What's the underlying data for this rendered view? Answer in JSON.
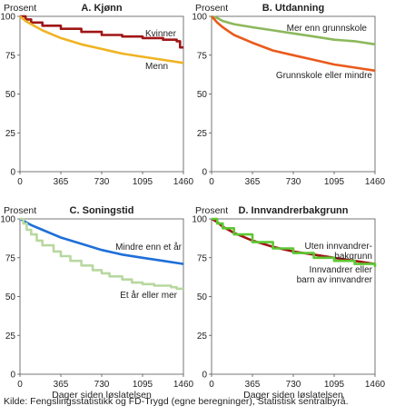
{
  "source_note": "Kilde: Fengslingsstatistikk og FD-Trygd (egne beregninger), Statistisk sentralbyrå.",
  "chart_data": [
    {
      "type": "line",
      "title": "A. Kjønn",
      "ylabel": "Prosent",
      "xlabel": "",
      "xlim": [
        0,
        1460
      ],
      "ylim": [
        0,
        100
      ],
      "xticks": [
        0,
        365,
        730,
        1095,
        1460
      ],
      "yticks": [
        0,
        25,
        50,
        75,
        100
      ],
      "grid": false,
      "series": [
        {
          "name": "Kvinner",
          "color": "#a01515",
          "step": true,
          "x": [
            0,
            50,
            100,
            200,
            365,
            548,
            730,
            913,
            1095,
            1278,
            1400,
            1430,
            1460
          ],
          "y": [
            100,
            98,
            96,
            94,
            92,
            90,
            88,
            87,
            86,
            85,
            84,
            80,
            80
          ]
        },
        {
          "name": "Menn",
          "color": "#f0b322",
          "step": false,
          "x": [
            0,
            50,
            100,
            200,
            365,
            548,
            730,
            913,
            1095,
            1278,
            1460
          ],
          "y": [
            100,
            97,
            95,
            91,
            86,
            82,
            79,
            76,
            74,
            72,
            70
          ]
        }
      ]
    },
    {
      "type": "line",
      "title": "B. Utdanning",
      "ylabel": "Prosent",
      "xlabel": "",
      "xlim": [
        0,
        1460
      ],
      "ylim": [
        0,
        100
      ],
      "xticks": [
        0,
        365,
        730,
        1095,
        1460
      ],
      "yticks": [
        0,
        25,
        50,
        75,
        100
      ],
      "grid": false,
      "series": [
        {
          "name": "Mer enn grunnskole",
          "color": "#8cb85c",
          "step": false,
          "x": [
            0,
            50,
            100,
            200,
            365,
            548,
            730,
            913,
            1095,
            1278,
            1460
          ],
          "y": [
            100,
            99,
            97,
            95,
            93,
            91,
            89,
            87,
            85,
            84,
            82
          ]
        },
        {
          "name": "Grunnskole eller mindre",
          "color": "#ea5a1c",
          "step": false,
          "x": [
            0,
            50,
            100,
            200,
            365,
            548,
            730,
            913,
            1095,
            1278,
            1460
          ],
          "y": [
            100,
            96,
            93,
            88,
            83,
            78,
            75,
            72,
            69,
            67,
            65
          ]
        }
      ]
    },
    {
      "type": "line",
      "title": "C. Soningstid",
      "ylabel": "Prosent",
      "xlabel": "Dager siden løslatelsen",
      "xlim": [
        0,
        1460
      ],
      "ylim": [
        0,
        100
      ],
      "xticks": [
        0,
        365,
        730,
        1095,
        1460
      ],
      "yticks": [
        0,
        25,
        50,
        75,
        100
      ],
      "grid": false,
      "series": [
        {
          "name": "Mindre enn et år",
          "color": "#1e6fd8",
          "step": false,
          "x": [
            0,
            50,
            100,
            200,
            365,
            548,
            730,
            913,
            1095,
            1278,
            1460
          ],
          "y": [
            100,
            98,
            96,
            93,
            88,
            84,
            80,
            77,
            75,
            73,
            71
          ]
        },
        {
          "name": "Et år eller mer",
          "color": "#b8d8a0",
          "step": true,
          "x": [
            0,
            30,
            60,
            100,
            150,
            200,
            300,
            365,
            450,
            548,
            650,
            730,
            800,
            913,
            1000,
            1095,
            1200,
            1278,
            1350,
            1400,
            1460
          ],
          "y": [
            100,
            97,
            93,
            90,
            86,
            83,
            79,
            76,
            73,
            70,
            67,
            65,
            63,
            61,
            59,
            58,
            57,
            57,
            56,
            55,
            55
          ]
        }
      ]
    },
    {
      "type": "line",
      "title": "D. Innvandrerbakgrunn",
      "ylabel": "Prosent",
      "xlabel": "Dager siden løslatelsen",
      "xlim": [
        0,
        1460
      ],
      "ylim": [
        0,
        100
      ],
      "xticks": [
        0,
        365,
        730,
        1095,
        1460
      ],
      "yticks": [
        0,
        25,
        50,
        75,
        100
      ],
      "grid": false,
      "series": [
        {
          "name": "Uten innvandrer-bakgrunn",
          "color": "#a01515",
          "step": false,
          "x": [
            0,
            50,
            100,
            200,
            365,
            548,
            730,
            913,
            1095,
            1278,
            1460
          ],
          "y": [
            100,
            98,
            95,
            91,
            86,
            82,
            79,
            77,
            75,
            73,
            71
          ]
        },
        {
          "name": "Innvandrer eller barn av innvandrer",
          "color": "#5cc832",
          "step": true,
          "x": [
            0,
            50,
            100,
            200,
            365,
            548,
            730,
            913,
            1095,
            1278,
            1460
          ],
          "y": [
            100,
            97,
            94,
            90,
            85,
            81,
            78,
            75,
            73,
            71,
            69
          ]
        }
      ]
    }
  ]
}
